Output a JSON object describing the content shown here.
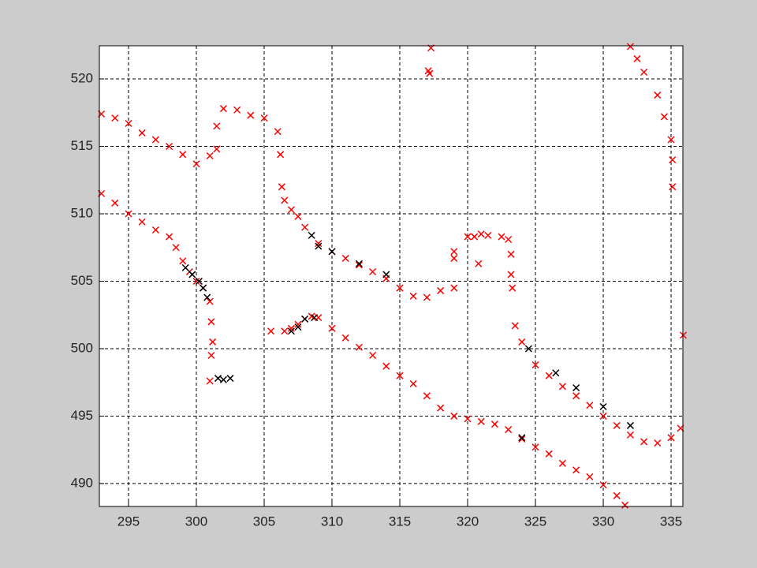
{
  "chart_data": {
    "type": "scatter",
    "grid": true,
    "xlim": [
      292.85,
      335.87
    ],
    "ylim": [
      488.3,
      522.46
    ],
    "xticks": [
      295,
      300,
      305,
      310,
      315,
      320,
      325,
      330,
      335
    ],
    "yticks": [
      490,
      495,
      500,
      505,
      510,
      515,
      520
    ],
    "series": [
      {
        "color": "#ff0000",
        "x": [
          293,
          294,
          295,
          296,
          297,
          298,
          299,
          300,
          301,
          301.5,
          301.5,
          302,
          303,
          304,
          305,
          306,
          306.2,
          306.3,
          306.5,
          307,
          307.5,
          308,
          309,
          310,
          311,
          312,
          313,
          314,
          315,
          316,
          317,
          318,
          319,
          319,
          319,
          320,
          320.5,
          321,
          321.5,
          320.8,
          322.5,
          323,
          323.2,
          323.2,
          323.3,
          323.5,
          324,
          325,
          326,
          327,
          328,
          329,
          330,
          331,
          332,
          333,
          334,
          335,
          335.7,
          332,
          332.5,
          333,
          334,
          334.5,
          335,
          335.1,
          335.1,
          335.9,
          317.3,
          317.1,
          317.2,
          293,
          294,
          295,
          296,
          297,
          298,
          298.5,
          299,
          299.5,
          300,
          300.5,
          301,
          301.1,
          301.2,
          301.1,
          301,
          305.5,
          306.5,
          307,
          307.5,
          308,
          308.5,
          309,
          310,
          311,
          312,
          313,
          314,
          315,
          316,
          317,
          318,
          319,
          320,
          321,
          322,
          323,
          324,
          325,
          326,
          327,
          328,
          329,
          330,
          331,
          331.6
        ],
        "y": [
          517.4,
          517.1,
          516.7,
          516,
          515.5,
          515,
          514.4,
          513.7,
          514.3,
          514.8,
          516.5,
          517.8,
          517.7,
          517.3,
          517.1,
          516.1,
          514.4,
          512,
          511,
          510.3,
          509.8,
          509,
          507.8,
          507.2,
          506.7,
          506.2,
          505.7,
          505.2,
          504.5,
          503.9,
          503.8,
          504.3,
          504.5,
          507.2,
          506.7,
          508.3,
          508.3,
          508.5,
          508.4,
          506.3,
          508.3,
          508.1,
          507,
          505.5,
          504.5,
          501.7,
          500.5,
          498.8,
          498,
          497.2,
          496.5,
          495.8,
          495,
          494.3,
          493.6,
          493.1,
          493,
          493.4,
          494.1,
          522.4,
          521.5,
          520.5,
          518.8,
          517.2,
          515.5,
          514,
          512,
          501,
          522.3,
          520.6,
          520.4,
          511.5,
          510.8,
          510,
          509.4,
          508.8,
          508.3,
          507.5,
          506.5,
          505.7,
          505,
          504.5,
          503.5,
          502,
          500.5,
          499.5,
          497.6,
          501.3,
          501.3,
          501.5,
          501.8,
          502.2,
          502.4,
          502.3,
          501.5,
          500.8,
          500.1,
          499.5,
          498.7,
          498,
          497.4,
          496.5,
          495.6,
          495,
          494.8,
          494.6,
          494.4,
          494,
          493.3,
          492.7,
          492.2,
          491.5,
          491,
          490.5,
          489.9,
          489.1,
          488.4
        ]
      },
      {
        "color": "#000000",
        "x": [
          299.2,
          299.7,
          300.2,
          300.5,
          300.8,
          301.6,
          302,
          302.5,
          307,
          307.5,
          308,
          308.7,
          309,
          308.5,
          310,
          312,
          314,
          324,
          324.5,
          326.5,
          328,
          330,
          332
        ],
        "y": [
          506,
          505.5,
          505,
          504.5,
          503.8,
          497.8,
          497.7,
          497.8,
          501.3,
          501.6,
          502.2,
          502.3,
          507.6,
          508.4,
          507.2,
          506.3,
          505.5,
          493.4,
          500,
          498.2,
          497.1,
          495.7,
          494.3
        ]
      }
    ]
  }
}
